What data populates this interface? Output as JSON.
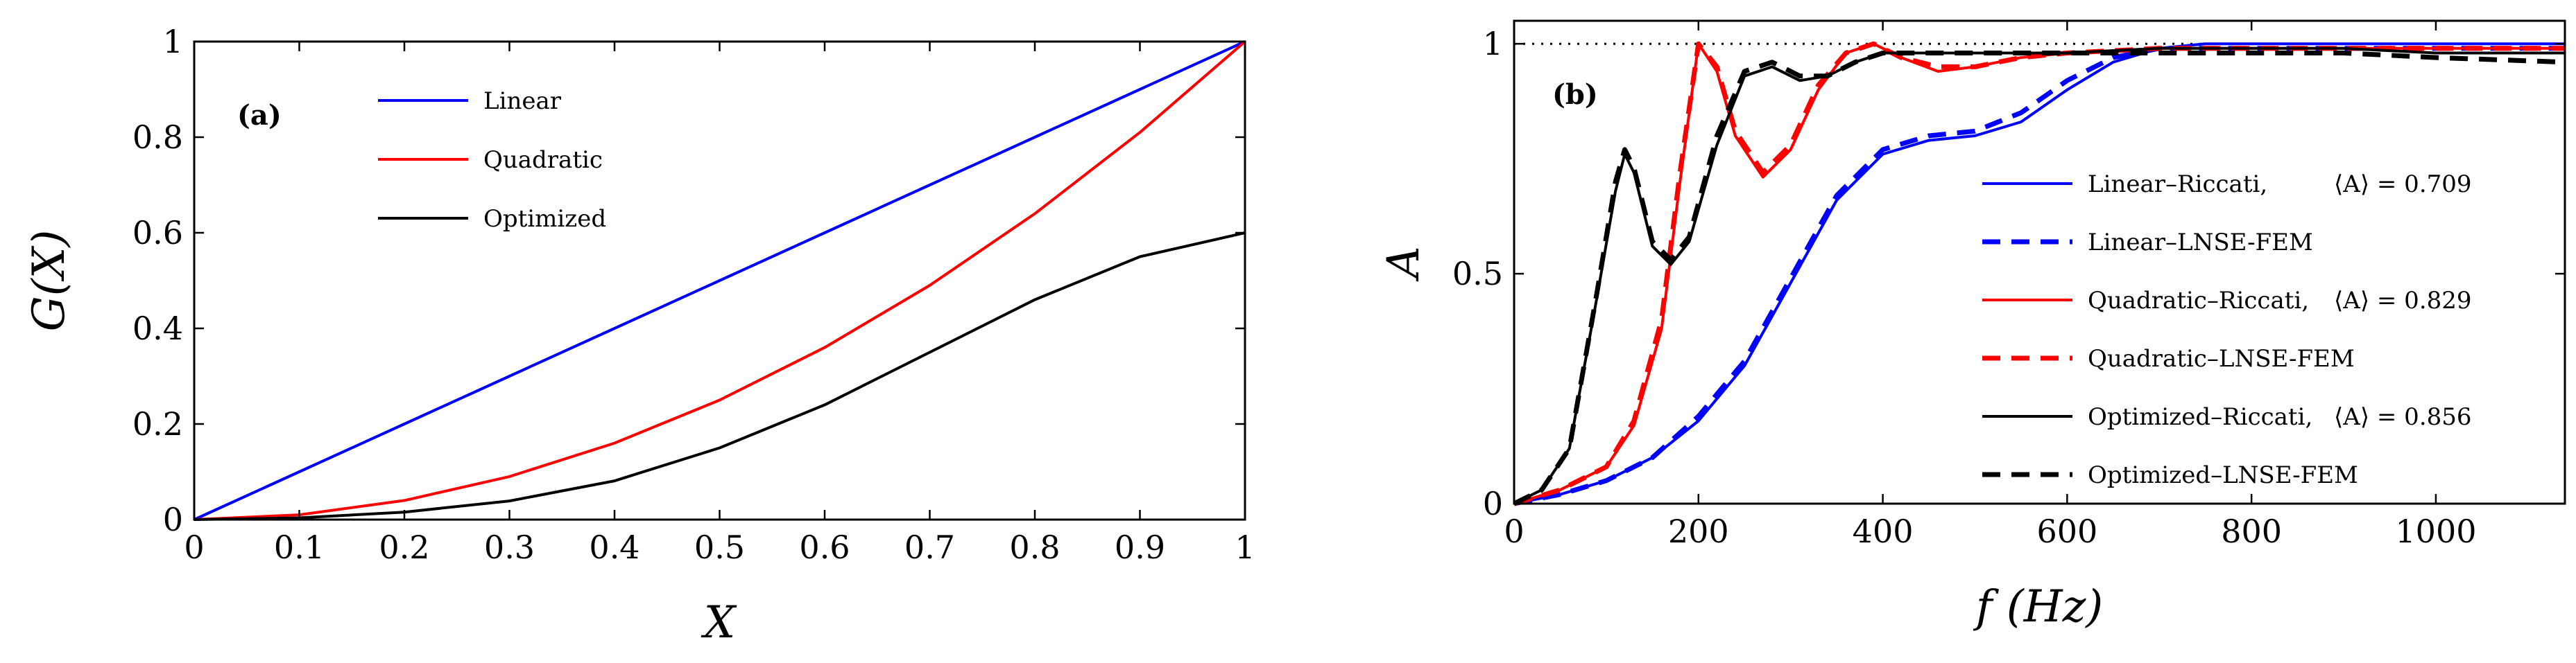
{
  "chart_data": [
    {
      "type": "line",
      "panel_label": "(a)",
      "xlabel": "X",
      "ylabel": "G(X)",
      "xlim": [
        0,
        1
      ],
      "ylim": [
        0,
        1
      ],
      "xticks": [
        "0",
        "0.1",
        "0.2",
        "0.3",
        "0.4",
        "0.5",
        "0.6",
        "0.7",
        "0.8",
        "0.9",
        "1"
      ],
      "yticks": [
        "0",
        "0.2",
        "0.4",
        "0.6",
        "0.8",
        "1"
      ],
      "legend_position": "top-left",
      "x": [
        0,
        0.1,
        0.2,
        0.3,
        0.4,
        0.5,
        0.6,
        0.7,
        0.8,
        0.9,
        1.0
      ],
      "series": [
        {
          "name": "Linear",
          "color": "#0000ff",
          "style": "solid",
          "values": [
            0,
            0.1,
            0.2,
            0.3,
            0.4,
            0.5,
            0.6,
            0.7,
            0.8,
            0.9,
            1.0
          ]
        },
        {
          "name": "Quadratic",
          "color": "#ff0000",
          "style": "solid",
          "values": [
            0,
            0.01,
            0.04,
            0.09,
            0.16,
            0.25,
            0.36,
            0.49,
            0.64,
            0.81,
            1.0
          ]
        },
        {
          "name": "Optimized",
          "color": "#000000",
          "style": "solid",
          "values": [
            0,
            0.0036,
            0.0156,
            0.039,
            0.081,
            0.15,
            0.24,
            0.35,
            0.46,
            0.55,
            0.6
          ]
        }
      ]
    },
    {
      "type": "line",
      "panel_label": "(b)",
      "xlabel": "f (Hz)",
      "ylabel": "A",
      "xlim": [
        0,
        1140
      ],
      "ylim": [
        0,
        1.05
      ],
      "xticks": [
        "0",
        "200",
        "400",
        "600",
        "800",
        "1000"
      ],
      "yticks": [
        "0",
        "0.5",
        "1"
      ],
      "reference_line": {
        "y": 1,
        "style": "dotted",
        "color": "#000000"
      },
      "legend_position": "bottom-right",
      "series": [
        {
          "name": "Linear–Riccati,",
          "mean_label": "⟨A⟩ = 0.709",
          "color": "#0000ff",
          "style": "solid",
          "x": [
            0,
            50,
            100,
            150,
            200,
            250,
            300,
            350,
            400,
            450,
            500,
            550,
            600,
            650,
            700,
            750,
            800,
            900,
            1000,
            1140
          ],
          "y": [
            0,
            0.02,
            0.05,
            0.1,
            0.18,
            0.3,
            0.48,
            0.66,
            0.76,
            0.79,
            0.8,
            0.83,
            0.9,
            0.96,
            0.99,
            1.0,
            1.0,
            1.0,
            1.0,
            1.0
          ]
        },
        {
          "name": "Linear–LNSE-FEM",
          "color": "#0000ff",
          "style": "dashed",
          "x": [
            0,
            50,
            100,
            150,
            200,
            250,
            300,
            350,
            400,
            450,
            500,
            550,
            600,
            650,
            700,
            750,
            800,
            900,
            1000,
            1140
          ],
          "y": [
            0,
            0.02,
            0.05,
            0.1,
            0.19,
            0.31,
            0.49,
            0.67,
            0.77,
            0.8,
            0.81,
            0.85,
            0.92,
            0.97,
            0.99,
            0.99,
            0.99,
            0.99,
            0.99,
            0.99
          ]
        },
        {
          "name": "Quadratic–Riccati,",
          "mean_label": "⟨A⟩ = 0.829",
          "color": "#ff0000",
          "style": "solid",
          "x": [
            0,
            50,
            100,
            130,
            160,
            180,
            200,
            220,
            240,
            270,
            300,
            330,
            360,
            390,
            420,
            460,
            500,
            550,
            600,
            700,
            800,
            900,
            1000,
            1140
          ],
          "y": [
            0,
            0.03,
            0.08,
            0.17,
            0.38,
            0.7,
            1.0,
            0.94,
            0.8,
            0.71,
            0.77,
            0.9,
            0.98,
            1.0,
            0.97,
            0.94,
            0.95,
            0.97,
            0.98,
            0.99,
            0.99,
            0.99,
            0.99,
            0.99
          ]
        },
        {
          "name": "Quadratic–LNSE-FEM",
          "color": "#ff0000",
          "style": "dashed",
          "x": [
            0,
            50,
            100,
            130,
            160,
            180,
            200,
            220,
            240,
            270,
            300,
            330,
            360,
            390,
            420,
            460,
            500,
            550,
            600,
            700,
            800,
            900,
            1000,
            1140
          ],
          "y": [
            0,
            0.03,
            0.08,
            0.18,
            0.4,
            0.72,
            1.0,
            0.95,
            0.81,
            0.72,
            0.78,
            0.91,
            0.98,
            1.0,
            0.97,
            0.95,
            0.95,
            0.97,
            0.98,
            0.99,
            0.99,
            0.99,
            0.99,
            0.99
          ]
        },
        {
          "name": "Optimized–Riccati,",
          "mean_label": "⟨A⟩ = 0.856",
          "color": "#000000",
          "style": "solid",
          "x": [
            0,
            30,
            60,
            90,
            110,
            120,
            130,
            150,
            170,
            190,
            220,
            250,
            280,
            310,
            340,
            370,
            400,
            450,
            500,
            600,
            700,
            800,
            900,
            1000,
            1140
          ],
          "y": [
            0,
            0.03,
            0.12,
            0.45,
            0.68,
            0.76,
            0.72,
            0.56,
            0.52,
            0.57,
            0.78,
            0.93,
            0.95,
            0.92,
            0.93,
            0.96,
            0.98,
            0.98,
            0.98,
            0.98,
            0.99,
            0.99,
            0.99,
            0.98,
            0.98
          ]
        },
        {
          "name": "Optimized–LNSE-FEM",
          "color": "#000000",
          "style": "dashed",
          "x": [
            0,
            30,
            60,
            90,
            110,
            120,
            130,
            150,
            170,
            190,
            220,
            250,
            280,
            310,
            340,
            370,
            400,
            450,
            500,
            600,
            700,
            800,
            900,
            1000,
            1140
          ],
          "y": [
            0,
            0.03,
            0.12,
            0.46,
            0.7,
            0.77,
            0.73,
            0.57,
            0.53,
            0.58,
            0.8,
            0.94,
            0.96,
            0.93,
            0.93,
            0.96,
            0.98,
            0.98,
            0.98,
            0.98,
            0.98,
            0.98,
            0.98,
            0.97,
            0.96
          ]
        }
      ]
    }
  ]
}
